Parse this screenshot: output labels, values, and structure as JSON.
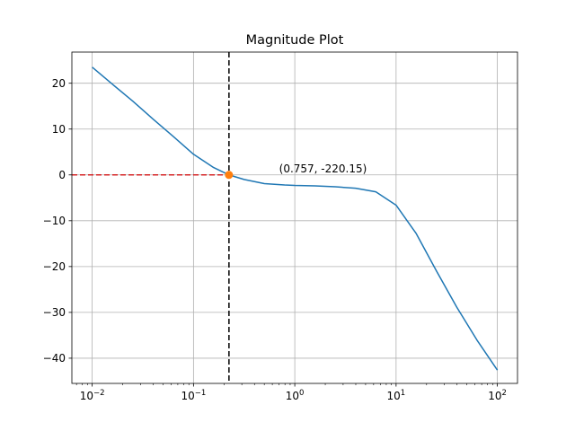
{
  "chart_data": {
    "type": "line",
    "title": "Magnitude Plot",
    "xscale": "log",
    "grid": true,
    "xlim": [
      0.0063,
      158
    ],
    "ylim": [
      -45.5,
      26.8
    ],
    "x_ticks": [
      {
        "value": 0.01,
        "base": "10",
        "exp": "−2"
      },
      {
        "value": 0.1,
        "base": "10",
        "exp": "−1"
      },
      {
        "value": 1,
        "base": "10",
        "exp": "0"
      },
      {
        "value": 10,
        "base": "10",
        "exp": "1"
      },
      {
        "value": 100,
        "base": "10",
        "exp": "2"
      }
    ],
    "y_ticks": [
      {
        "value": 20,
        "label": "20"
      },
      {
        "value": 10,
        "label": "10"
      },
      {
        "value": 0,
        "label": "0"
      },
      {
        "value": -10,
        "label": "−10"
      },
      {
        "value": -20,
        "label": "−20"
      },
      {
        "value": -30,
        "label": "−30"
      },
      {
        "value": -40,
        "label": "−40"
      }
    ],
    "series": [
      {
        "color": "#1f77b4",
        "x": [
          0.01,
          0.0158,
          0.0251,
          0.0398,
          0.0631,
          0.1,
          0.158,
          0.224,
          0.316,
          0.501,
          0.794,
          1.0,
          1.58,
          2.51,
          3.98,
          6.31,
          10,
          15.8,
          25.1,
          39.8,
          63.1,
          100
        ],
        "y": [
          23.5,
          19.8,
          16.1,
          12.2,
          8.4,
          4.5,
          1.6,
          0.0,
          -1.0,
          -1.9,
          -2.2,
          -2.3,
          -2.4,
          -2.6,
          -2.9,
          -3.7,
          -6.6,
          -12.8,
          -21.0,
          -28.9,
          -36.1,
          -42.6
        ]
      }
    ],
    "crossover_point": {
      "x": 0.224,
      "y": 0,
      "color": "#ff7f0e"
    },
    "vline": {
      "x": 0.224,
      "color": "#000000",
      "style": "dashed"
    },
    "hline": {
      "y": 0,
      "xmax": 0.224,
      "color": "#d62728",
      "style": "dashed"
    },
    "annotation": {
      "text": "(0.757, -220.15)",
      "x": 0.7,
      "y": 0.5
    }
  }
}
